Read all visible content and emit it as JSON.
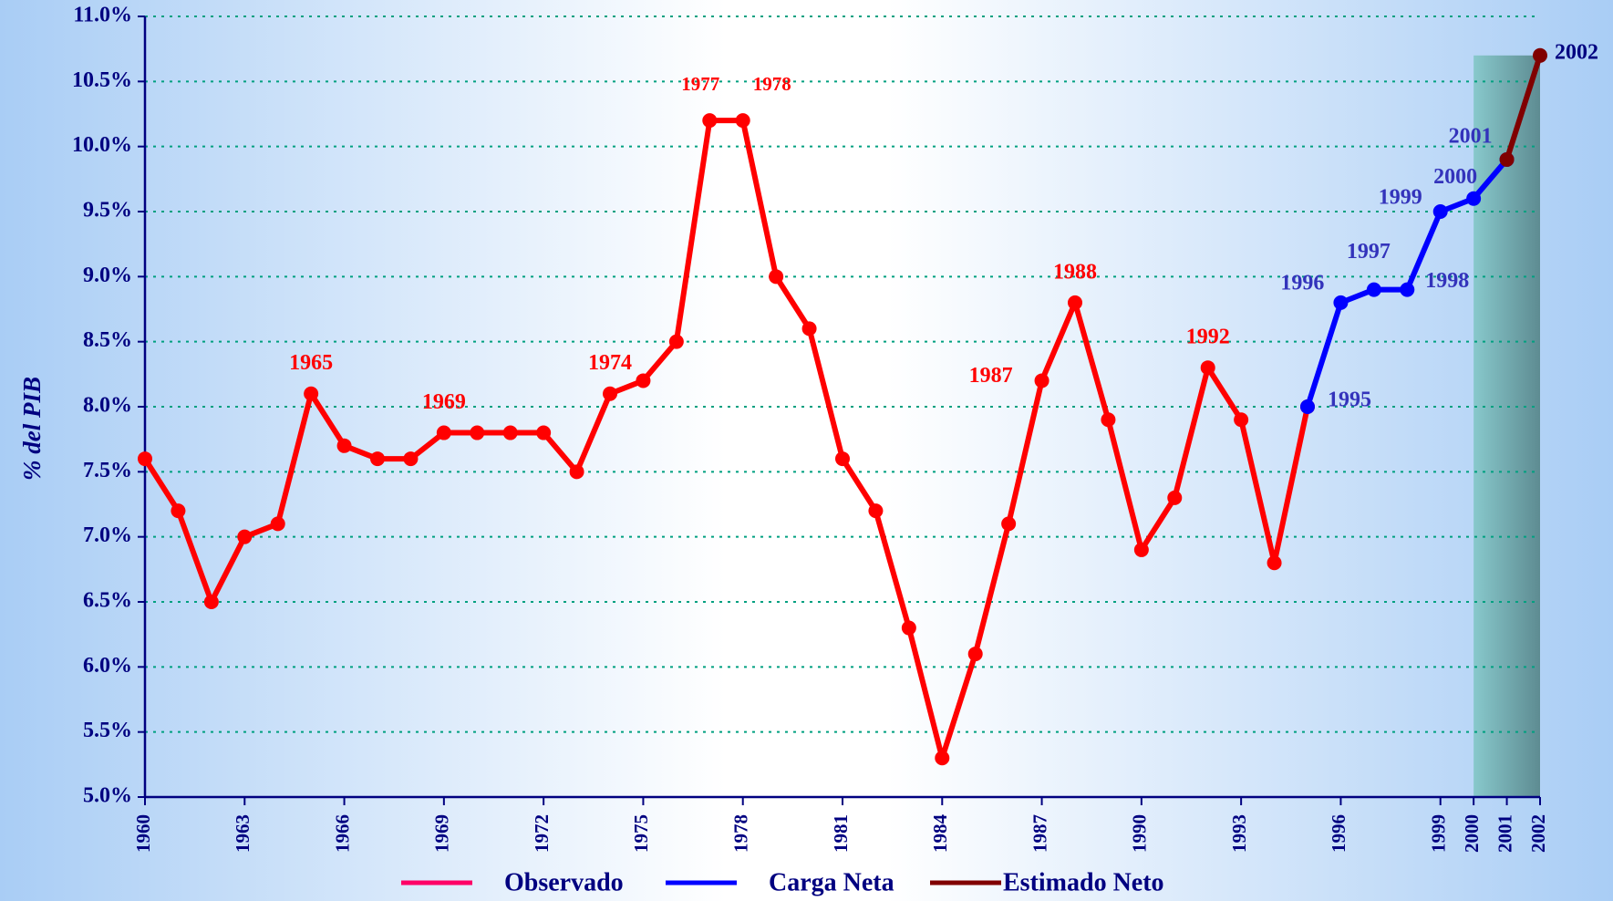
{
  "chart_data": {
    "type": "line",
    "y_label": "% del PIB",
    "xlim": [
      1960,
      2002
    ],
    "xticks": [
      1960,
      1963,
      1966,
      1969,
      1972,
      1975,
      1978,
      1981,
      1984,
      1987,
      1990,
      1993,
      1996,
      1999,
      2000,
      2001,
      2002
    ],
    "ylim": [
      5,
      11
    ],
    "yticks": [
      {
        "value": 5,
        "label": "5.0%"
      },
      {
        "value": 5.5,
        "label": "5.5%"
      },
      {
        "value": 6,
        "label": "6.0%"
      },
      {
        "value": 6.5,
        "label": "6.5%"
      },
      {
        "value": 7,
        "label": "7.0%"
      },
      {
        "value": 7.5,
        "label": "7.5%"
      },
      {
        "value": 8,
        "label": "8.0%"
      },
      {
        "value": 8.5,
        "label": "8.5%"
      },
      {
        "value": 9,
        "label": "9.0%"
      },
      {
        "value": 9.5,
        "label": "9.5%"
      },
      {
        "value": 10,
        "label": "10.0%"
      },
      {
        "value": 10.5,
        "label": "10.5%"
      },
      {
        "value": 11,
        "label": "11.0%"
      }
    ],
    "grid": true,
    "legend": "bottom",
    "series": [
      {
        "name": "Observado",
        "color": "#ff0000",
        "legend_color": "#ff0066",
        "x": [
          1960,
          1961,
          1962,
          1963,
          1964,
          1965,
          1966,
          1967,
          1968,
          1969,
          1970,
          1971,
          1972,
          1973,
          1974,
          1975,
          1976,
          1977,
          1978,
          1979,
          1980,
          1981,
          1982,
          1983,
          1984,
          1985,
          1986,
          1987,
          1988,
          1989,
          1990,
          1991,
          1992,
          1993,
          1994,
          1995
        ],
        "values": [
          7.6,
          7.2,
          6.5,
          7.0,
          7.1,
          8.1,
          7.7,
          7.6,
          7.6,
          7.8,
          7.8,
          7.8,
          7.8,
          7.5,
          8.1,
          8.2,
          8.5,
          10.2,
          10.2,
          9.0,
          8.6,
          7.6,
          7.2,
          6.3,
          5.3,
          6.1,
          7.1,
          8.2,
          8.8,
          7.9,
          6.9,
          7.3,
          8.3,
          7.9,
          6.8,
          8.0
        ],
        "labels": [
          null,
          null,
          null,
          null,
          null,
          "1965",
          null,
          null,
          null,
          "1969",
          null,
          null,
          null,
          null,
          "1974",
          null,
          null,
          "1977",
          "1978",
          null,
          null,
          null,
          null,
          null,
          null,
          null,
          null,
          "1987",
          "1988",
          null,
          null,
          null,
          "1992",
          null,
          null,
          null
        ]
      },
      {
        "name": "Carga Neta",
        "color": "#0000ff",
        "x": [
          1995,
          1996,
          1997,
          1998,
          1999,
          2000,
          2001
        ],
        "values": [
          8.0,
          8.8,
          8.9,
          8.9,
          9.5,
          9.6,
          9.9
        ],
        "labels": [
          "1995",
          "1996",
          "1997",
          "1998",
          "1999",
          "2000",
          "2001"
        ]
      },
      {
        "name": "Estimado Neto",
        "color": "#800000",
        "x": [
          2001,
          2002
        ],
        "values": [
          9.9,
          10.7
        ],
        "labels": [
          null,
          "2002"
        ]
      }
    ]
  }
}
